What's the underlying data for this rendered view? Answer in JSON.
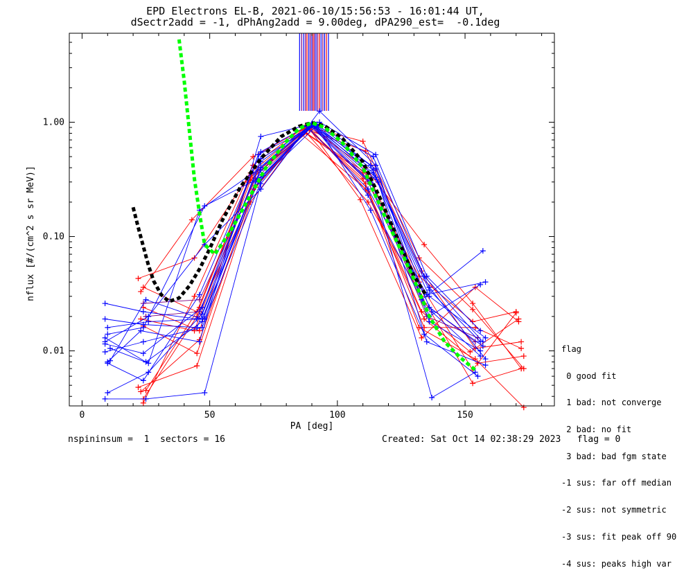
{
  "header": {
    "title": "EPD Electrons EL-B, 2021-06-10/15:56:53 - 16:01:44 UT,",
    "subtitle": "dSectr2add = -1, dPhAng2add = 9.00deg, dPA290_est=  -0.1deg"
  },
  "footer": {
    "left": "nspininsum =  1  sectors = 16",
    "right": "Created: Sat Oct 14 02:38:29 2023   flag = 0"
  },
  "legend": {
    "title": "flag",
    "items": [
      " 0 good fit",
      " 1 bad: not converge",
      " 2 bad: no fit",
      " 3 bad: bad fgm state",
      "-1 sus: far off median",
      "-2 sus: not symmetric",
      "-3 sus: fit peak off 90",
      "-4 sus: peaks high var"
    ]
  },
  "colors": {
    "red": "#ff0000",
    "blue": "#0000ff",
    "purple": "#800080",
    "green": "#00ff00",
    "black": "#000000"
  },
  "chart_data": {
    "type": "line",
    "xlabel": "PA [deg]",
    "ylabel": "nflux [#/(cm^2 s sr MeV)]",
    "xlim": [
      -5,
      185
    ],
    "ylim": [
      0.0033,
      6.0
    ],
    "ylog": true,
    "x_ticks": [
      0,
      50,
      100,
      150
    ],
    "x_tick_labels": [
      "0",
      "50",
      "100",
      "150"
    ],
    "y_ticks": [
      0.01,
      0.1,
      1.0
    ],
    "y_tick_labels": [
      "0.01",
      "0.10",
      "1.00"
    ],
    "grid": false,
    "peak_markers_x": [
      85.2,
      86.0,
      86.8,
      87.5,
      88.1,
      88.8,
      89.4,
      90.0,
      90.5,
      91.0,
      91.6,
      92.2,
      92.9,
      93.6,
      94.3,
      95.0,
      95.7,
      96.5
    ],
    "blue_series": [
      [
        [
          9,
          0.026
        ],
        [
          24,
          0.022
        ],
        [
          45,
          0.019
        ],
        [
          70,
          0.45
        ],
        [
          90,
          0.96
        ],
        [
          114,
          0.36
        ],
        [
          136,
          0.034
        ],
        [
          156,
          0.012
        ]
      ],
      [
        [
          9,
          0.019
        ],
        [
          24,
          0.017
        ],
        [
          45,
          0.016
        ],
        [
          70,
          0.38
        ],
        [
          91,
          0.95
        ],
        [
          115,
          0.33
        ],
        [
          136,
          0.03
        ],
        [
          158,
          0.013
        ]
      ],
      [
        [
          9,
          0.013
        ],
        [
          25,
          0.008
        ],
        [
          47,
          0.018
        ],
        [
          68,
          0.3
        ],
        [
          90,
          0.94
        ],
        [
          113,
          0.3
        ],
        [
          137,
          0.022
        ],
        [
          156,
          0.009
        ]
      ],
      [
        [
          10,
          0.008
        ],
        [
          23,
          0.015
        ],
        [
          46,
          0.012
        ],
        [
          70,
          0.75
        ],
        [
          93,
          1.0
        ],
        [
          115,
          0.52
        ],
        [
          135,
          0.045
        ],
        [
          156,
          0.015
        ]
      ],
      [
        [
          10,
          0.0043
        ],
        [
          26,
          0.0065
        ],
        [
          47,
          0.021
        ],
        [
          70,
          0.48
        ],
        [
          91,
          0.93
        ],
        [
          113,
          0.42
        ],
        [
          136,
          0.036
        ],
        [
          158,
          0.0085
        ]
      ],
      [
        [
          9,
          0.0038
        ],
        [
          25,
          0.0038
        ],
        [
          48,
          0.0043
        ],
        [
          70,
          0.29
        ],
        [
          89,
          0.95
        ],
        [
          114,
          0.28
        ],
        [
          137,
          0.0039
        ],
        [
          154,
          0.0065
        ]
      ],
      [
        [
          11,
          0.0105
        ],
        [
          26,
          0.0078
        ],
        [
          46,
          0.17
        ],
        [
          67,
          0.36
        ],
        [
          90,
          0.97
        ],
        [
          112,
          0.23
        ],
        [
          133,
          0.028
        ],
        [
          157,
          0.075
        ]
      ],
      [
        [
          9,
          0.0115
        ],
        [
          24,
          0.0095
        ],
        [
          47,
          0.024
        ],
        [
          69,
          0.52
        ],
        [
          92,
          0.96
        ],
        [
          115,
          0.39
        ],
        [
          136,
          0.024
        ],
        [
          157,
          0.011
        ]
      ],
      [
        [
          10,
          0.016
        ],
        [
          26,
          0.018
        ],
        [
          48,
          0.019
        ],
        [
          70,
          0.4
        ],
        [
          90,
          0.95
        ],
        [
          116,
          0.3
        ],
        [
          135,
          0.012
        ],
        [
          158,
          0.0075
        ]
      ],
      [
        [
          9,
          0.0098
        ],
        [
          24,
          0.012
        ],
        [
          47,
          0.016
        ],
        [
          71,
          0.34
        ],
        [
          91,
          0.97
        ],
        [
          114,
          0.38
        ],
        [
          136,
          0.02
        ],
        [
          156,
          0.038
        ]
      ],
      [
        [
          11,
          0.0082
        ],
        [
          25,
          0.028
        ],
        [
          47,
          0.019
        ],
        [
          69,
          0.3
        ],
        [
          92,
          0.94
        ],
        [
          113,
          0.17
        ],
        [
          134,
          0.014
        ],
        [
          155,
          0.006
        ]
      ],
      [
        [
          10,
          0.0078
        ],
        [
          24,
          0.0055
        ],
        [
          46,
          0.031
        ],
        [
          70,
          0.55
        ],
        [
          88,
          0.92
        ],
        [
          112,
          0.26
        ],
        [
          135,
          0.031
        ],
        [
          158,
          0.04
        ]
      ],
      [
        [
          9,
          0.012
        ],
        [
          26,
          0.02
        ],
        [
          48,
          0.085
        ],
        [
          70,
          0.26
        ],
        [
          93,
          1.25
        ],
        [
          115,
          0.42
        ],
        [
          136,
          0.018
        ],
        [
          156,
          0.01
        ]
      ],
      [
        [
          10,
          0.014
        ],
        [
          24,
          0.016
        ],
        [
          48,
          0.185
        ],
        [
          70,
          0.33
        ],
        [
          91,
          0.96
        ],
        [
          114,
          0.5
        ],
        [
          134,
          0.045
        ],
        [
          157,
          0.012
        ]
      ]
    ],
    "red_series": [
      [
        [
          22,
          0.043
        ],
        [
          44,
          0.065
        ],
        [
          66,
          0.36
        ],
        [
          88,
          0.92
        ],
        [
          110,
          0.68
        ],
        [
          132,
          0.065
        ],
        [
          153,
          0.023
        ],
        [
          173,
          0.007
        ]
      ],
      [
        [
          23,
          0.033
        ],
        [
          43,
          0.14
        ],
        [
          67,
          0.5
        ],
        [
          87,
          0.88
        ],
        [
          111,
          0.56
        ],
        [
          133,
          0.05
        ],
        [
          154,
          0.0105
        ],
        [
          172,
          0.012
        ]
      ],
      [
        [
          24,
          0.036
        ],
        [
          45,
          0.022
        ],
        [
          66,
          0.34
        ],
        [
          88,
          0.8
        ],
        [
          112,
          0.35
        ],
        [
          132,
          0.04
        ],
        [
          153,
          0.0068
        ],
        [
          170,
          0.0215
        ]
      ],
      [
        [
          24,
          0.024
        ],
        [
          46,
          0.015
        ],
        [
          65,
          0.3
        ],
        [
          89,
          0.86
        ],
        [
          110,
          0.32
        ],
        [
          133,
          0.022
        ],
        [
          152,
          0.0098
        ],
        [
          171,
          0.019
        ]
      ],
      [
        [
          23,
          0.019
        ],
        [
          44,
          0.015
        ],
        [
          66,
          0.31
        ],
        [
          88,
          0.9
        ],
        [
          111,
          0.29
        ],
        [
          134,
          0.016
        ],
        [
          154,
          0.016
        ],
        [
          172,
          0.0105
        ]
      ],
      [
        [
          24,
          0.0165
        ],
        [
          45,
          0.0095
        ],
        [
          67,
          0.26
        ],
        [
          86,
          0.78
        ],
        [
          112,
          0.25
        ],
        [
          132,
          0.016
        ],
        [
          154,
          0.0085
        ],
        [
          173,
          0.0032
        ]
      ],
      [
        [
          22,
          0.0048
        ],
        [
          45,
          0.0074
        ],
        [
          66,
          0.2
        ],
        [
          87,
          0.85
        ],
        [
          112,
          0.2
        ],
        [
          133,
          0.03
        ],
        [
          153,
          0.0052
        ],
        [
          172,
          0.007
        ]
      ],
      [
        [
          23,
          0.0044
        ],
        [
          46,
          0.0125
        ],
        [
          68,
          0.28
        ],
        [
          89,
          0.88
        ],
        [
          109,
          0.21
        ],
        [
          133,
          0.013
        ],
        [
          154,
          0.036
        ],
        [
          171,
          0.018
        ]
      ],
      [
        [
          24,
          0.0035
        ],
        [
          44,
          0.03
        ],
        [
          67,
          0.42
        ],
        [
          88,
          0.94
        ],
        [
          111,
          0.4
        ],
        [
          134,
          0.085
        ],
        [
          153,
          0.026
        ],
        [
          172,
          0.007
        ]
      ],
      [
        [
          25,
          0.0045
        ],
        [
          46,
          0.024
        ],
        [
          66,
          0.33
        ],
        [
          87,
          0.82
        ],
        [
          110,
          0.36
        ],
        [
          132,
          0.045
        ],
        [
          153,
          0.018
        ],
        [
          170,
          0.022
        ]
      ],
      [
        [
          24,
          0.0038
        ],
        [
          45,
          0.02
        ],
        [
          68,
          0.27
        ],
        [
          89,
          0.9
        ],
        [
          111,
          0.26
        ],
        [
          134,
          0.019
        ],
        [
          155,
          0.0078
        ],
        [
          173,
          0.009
        ]
      ]
    ],
    "purple_series": [
      [
        [
          24,
          0.026
        ],
        [
          46,
          0.028
        ],
        [
          68,
          0.32
        ],
        [
          90,
          0.92
        ],
        [
          112,
          0.3
        ],
        [
          134,
          0.026
        ],
        [
          154,
          0.012
        ]
      ],
      [
        [
          25,
          0.02
        ],
        [
          46,
          0.022
        ],
        [
          69,
          0.38
        ],
        [
          90,
          0.95
        ],
        [
          113,
          0.32
        ],
        [
          135,
          0.02
        ],
        [
          155,
          0.013
        ]
      ]
    ],
    "green_fit": [
      [
        38,
        5.3
      ],
      [
        40,
        2.3
      ],
      [
        42,
        0.85
      ],
      [
        44,
        0.32
      ],
      [
        46,
        0.16
      ],
      [
        48,
        0.085
      ],
      [
        52,
        0.07
      ],
      [
        58,
        0.11
      ],
      [
        65,
        0.21
      ],
      [
        72,
        0.4
      ],
      [
        80,
        0.68
      ],
      [
        85,
        0.88
      ],
      [
        90,
        0.99
      ],
      [
        95,
        0.9
      ],
      [
        102,
        0.66
      ],
      [
        110,
        0.4
      ],
      [
        118,
        0.16
      ],
      [
        124,
        0.083
      ],
      [
        130,
        0.042
      ],
      [
        136,
        0.02
      ],
      [
        142,
        0.012
      ],
      [
        148,
        0.0088
      ],
      [
        154,
        0.0068
      ]
    ],
    "black_fit": [
      [
        20,
        0.18
      ],
      [
        22,
        0.12
      ],
      [
        24,
        0.082
      ],
      [
        26,
        0.056
      ],
      [
        28,
        0.041
      ],
      [
        31,
        0.031
      ],
      [
        34,
        0.027
      ],
      [
        38,
        0.029
      ],
      [
        42,
        0.037
      ],
      [
        46,
        0.052
      ],
      [
        50,
        0.078
      ],
      [
        55,
        0.14
      ],
      [
        62,
        0.27
      ],
      [
        70,
        0.48
      ],
      [
        78,
        0.75
      ],
      [
        85,
        0.92
      ],
      [
        90,
        0.99
      ],
      [
        95,
        0.93
      ],
      [
        102,
        0.72
      ],
      [
        110,
        0.45
      ],
      [
        117,
        0.21
      ],
      [
        124,
        0.091
      ],
      [
        130,
        0.045
      ],
      [
        135,
        0.03
      ]
    ]
  }
}
